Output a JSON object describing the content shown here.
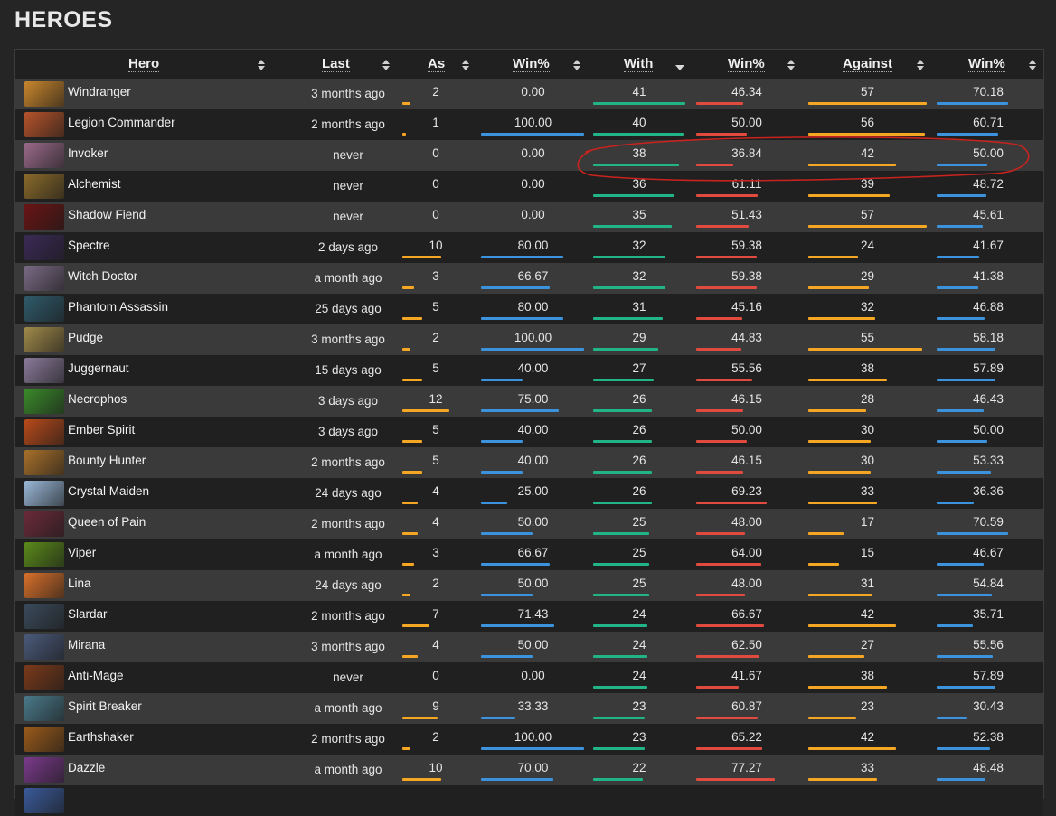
{
  "page": {
    "title": "HEROES"
  },
  "table": {
    "columns": [
      {
        "key": "hero",
        "label": "Hero",
        "sort": "both"
      },
      {
        "key": "last",
        "label": "Last",
        "sort": "both"
      },
      {
        "key": "as",
        "label": "As",
        "sort": "both"
      },
      {
        "key": "as_win",
        "label": "Win%",
        "sort": "both"
      },
      {
        "key": "with",
        "label": "With",
        "sort": "desc"
      },
      {
        "key": "with_win",
        "label": "Win%",
        "sort": "both"
      },
      {
        "key": "against",
        "label": "Against",
        "sort": "both"
      },
      {
        "key": "against_win",
        "label": "Win%",
        "sort": "both"
      }
    ],
    "rows": [
      {
        "hero": "Windranger",
        "icon": "windranger-portrait-icon",
        "color": "#c9862c",
        "last": "3 months ago",
        "as": "2",
        "as_win": "0.00",
        "with": "41",
        "with_win": "46.34",
        "against": "57",
        "against_win": "70.18"
      },
      {
        "hero": "Legion Commander",
        "icon": "legion-commander-portrait-icon",
        "color": "#b5532a",
        "last": "2 months ago",
        "as": "1",
        "as_win": "100.00",
        "with": "40",
        "with_win": "50.00",
        "against": "56",
        "against_win": "60.71"
      },
      {
        "hero": "Invoker",
        "icon": "invoker-portrait-icon",
        "color": "#9a6a8a",
        "last": "never",
        "as": "0",
        "as_win": "0.00",
        "with": "38",
        "with_win": "36.84",
        "against": "42",
        "against_win": "50.00"
      },
      {
        "hero": "Alchemist",
        "icon": "alchemist-portrait-icon",
        "color": "#8a6a2a",
        "last": "never",
        "as": "0",
        "as_win": "0.00",
        "with": "36",
        "with_win": "61.11",
        "against": "39",
        "against_win": "48.72"
      },
      {
        "hero": "Shadow Fiend",
        "icon": "shadow-fiend-portrait-icon",
        "color": "#6a1414",
        "last": "never",
        "as": "0",
        "as_win": "0.00",
        "with": "35",
        "with_win": "51.43",
        "against": "57",
        "against_win": "45.61"
      },
      {
        "hero": "Spectre",
        "icon": "spectre-portrait-icon",
        "color": "#3a2a55",
        "last": "2 days ago",
        "as": "10",
        "as_win": "80.00",
        "with": "32",
        "with_win": "59.38",
        "against": "24",
        "against_win": "41.67"
      },
      {
        "hero": "Witch Doctor",
        "icon": "witch-doctor-portrait-icon",
        "color": "#7a6a85",
        "last": "a month ago",
        "as": "3",
        "as_win": "66.67",
        "with": "32",
        "with_win": "59.38",
        "against": "29",
        "against_win": "41.38"
      },
      {
        "hero": "Phantom Assassin",
        "icon": "phantom-assassin-portrait-icon",
        "color": "#2f5a6a",
        "last": "25 days ago",
        "as": "5",
        "as_win": "80.00",
        "with": "31",
        "with_win": "45.16",
        "against": "32",
        "against_win": "46.88"
      },
      {
        "hero": "Pudge",
        "icon": "pudge-portrait-icon",
        "color": "#a08a4a",
        "last": "3 months ago",
        "as": "2",
        "as_win": "100.00",
        "with": "29",
        "with_win": "44.83",
        "against": "55",
        "against_win": "58.18"
      },
      {
        "hero": "Juggernaut",
        "icon": "juggernaut-portrait-icon",
        "color": "#8a7a9a",
        "last": "15 days ago",
        "as": "5",
        "as_win": "40.00",
        "with": "27",
        "with_win": "55.56",
        "against": "38",
        "against_win": "57.89"
      },
      {
        "hero": "Necrophos",
        "icon": "necrophos-portrait-icon",
        "color": "#3a8a2a",
        "last": "3 days ago",
        "as": "12",
        "as_win": "75.00",
        "with": "26",
        "with_win": "46.15",
        "against": "28",
        "against_win": "46.43"
      },
      {
        "hero": "Ember Spirit",
        "icon": "ember-spirit-portrait-icon",
        "color": "#b84a1a",
        "last": "3 days ago",
        "as": "5",
        "as_win": "40.00",
        "with": "26",
        "with_win": "50.00",
        "against": "30",
        "against_win": "50.00"
      },
      {
        "hero": "Bounty Hunter",
        "icon": "bounty-hunter-portrait-icon",
        "color": "#a8702a",
        "last": "2 months ago",
        "as": "5",
        "as_win": "40.00",
        "with": "26",
        "with_win": "46.15",
        "against": "30",
        "against_win": "53.33"
      },
      {
        "hero": "Crystal Maiden",
        "icon": "crystal-maiden-portrait-icon",
        "color": "#9ab8d8",
        "last": "24 days ago",
        "as": "4",
        "as_win": "25.00",
        "with": "26",
        "with_win": "69.23",
        "against": "33",
        "against_win": "36.36"
      },
      {
        "hero": "Queen of Pain",
        "icon": "queen-of-pain-portrait-icon",
        "color": "#6a2a3a",
        "last": "2 months ago",
        "as": "4",
        "as_win": "50.00",
        "with": "25",
        "with_win": "48.00",
        "against": "17",
        "against_win": "70.59"
      },
      {
        "hero": "Viper",
        "icon": "viper-portrait-icon",
        "color": "#5a8a1a",
        "last": "a month ago",
        "as": "3",
        "as_win": "66.67",
        "with": "25",
        "with_win": "64.00",
        "against": "15",
        "against_win": "46.67"
      },
      {
        "hero": "Lina",
        "icon": "lina-portrait-icon",
        "color": "#d8702a",
        "last": "24 days ago",
        "as": "2",
        "as_win": "50.00",
        "with": "25",
        "with_win": "48.00",
        "against": "31",
        "against_win": "54.84"
      },
      {
        "hero": "Slardar",
        "icon": "slardar-portrait-icon",
        "color": "#3a4a5a",
        "last": "2 months ago",
        "as": "7",
        "as_win": "71.43",
        "with": "24",
        "with_win": "66.67",
        "against": "42",
        "against_win": "35.71"
      },
      {
        "hero": "Mirana",
        "icon": "mirana-portrait-icon",
        "color": "#4a5a7a",
        "last": "3 months ago",
        "as": "4",
        "as_win": "50.00",
        "with": "24",
        "with_win": "62.50",
        "against": "27",
        "against_win": "55.56"
      },
      {
        "hero": "Anti-Mage",
        "icon": "anti-mage-portrait-icon",
        "color": "#7a3a1a",
        "last": "never",
        "as": "0",
        "as_win": "0.00",
        "with": "24",
        "with_win": "41.67",
        "against": "38",
        "against_win": "57.89"
      },
      {
        "hero": "Spirit Breaker",
        "icon": "spirit-breaker-portrait-icon",
        "color": "#4a7a8a",
        "last": "a month ago",
        "as": "9",
        "as_win": "33.33",
        "with": "23",
        "with_win": "60.87",
        "against": "23",
        "against_win": "30.43"
      },
      {
        "hero": "Earthshaker",
        "icon": "earthshaker-portrait-icon",
        "color": "#9a5a1a",
        "last": "2 months ago",
        "as": "2",
        "as_win": "100.00",
        "with": "23",
        "with_win": "65.22",
        "against": "42",
        "against_win": "52.38"
      },
      {
        "hero": "Dazzle",
        "icon": "dazzle-portrait-icon",
        "color": "#7a3a8a",
        "last": "a month ago",
        "as": "10",
        "as_win": "70.00",
        "with": "22",
        "with_win": "77.27",
        "against": "33",
        "against_win": "48.48"
      },
      {
        "hero": "",
        "icon": "hero-portrait-icon",
        "color": "#3a5a9a",
        "last": "",
        "as": "",
        "as_win": "",
        "with": "",
        "with_win": "",
        "against": "",
        "against_win": ""
      }
    ]
  },
  "bar_colors": {
    "as": "#f5a623",
    "as_win": "#3a93dc",
    "with": "#20b486",
    "with_win": "#e04a3f",
    "against": "#f5a623",
    "against_win": "#3a93dc"
  },
  "annotation": {
    "color": "#c8231e",
    "highlighted_row": "Invoker"
  }
}
